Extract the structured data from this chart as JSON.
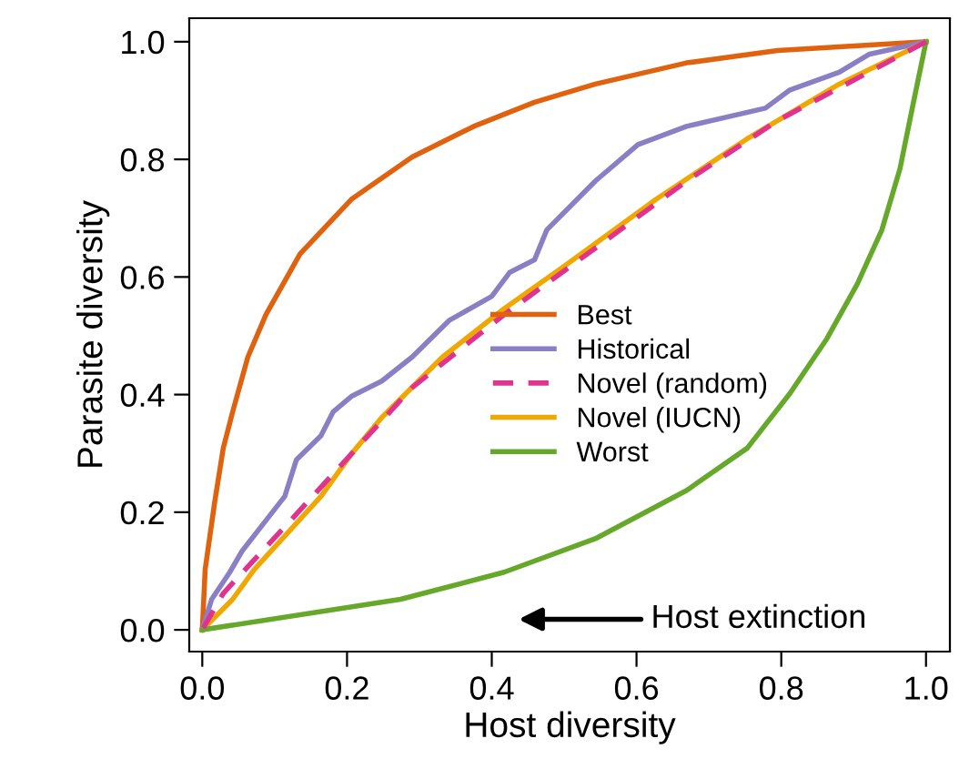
{
  "chart_data": {
    "type": "line",
    "xlabel": "Host diversity",
    "ylabel": "Parasite diversity",
    "xlim": [
      -0.018,
      1.033
    ],
    "ylim": [
      -0.037,
      1.04
    ],
    "xticks": [
      {
        "value": 0,
        "label": "0.0"
      },
      {
        "value": 0.2,
        "label": "0.2"
      },
      {
        "value": 0.4,
        "label": "0.4"
      },
      {
        "value": 0.6,
        "label": "0.6"
      },
      {
        "value": 0.8,
        "label": "0.8"
      },
      {
        "value": 1,
        "label": "1.0"
      }
    ],
    "yticks": [
      {
        "value": 0,
        "label": "0.0"
      },
      {
        "value": 0.2,
        "label": "0.2"
      },
      {
        "value": 0.4,
        "label": "0.4"
      },
      {
        "value": 0.6,
        "label": "0.6"
      },
      {
        "value": 0.8,
        "label": "0.8"
      },
      {
        "value": 1,
        "label": "1.0"
      }
    ],
    "grid": false,
    "legend": "center",
    "marker": "none",
    "annotations": [
      "Host extinction"
    ],
    "series": [
      {
        "name": "Best",
        "color": "#e0620e",
        "line_style": "solid",
        "x": [
          0,
          0.004,
          0.017,
          0.029,
          0.042,
          0.063,
          0.088,
          0.135,
          0.206,
          0.29,
          0.375,
          0.459,
          0.543,
          0.669,
          0.795,
          1
        ],
        "values": [
          0,
          0.103,
          0.216,
          0.309,
          0.371,
          0.464,
          0.536,
          0.639,
          0.732,
          0.804,
          0.856,
          0.897,
          0.928,
          0.964,
          0.985,
          1
        ]
      },
      {
        "name": "Historical",
        "color": "#8a7fc4",
        "line_style": "solid",
        "x": [
          0,
          0.013,
          0.038,
          0.055,
          0.088,
          0.114,
          0.13,
          0.164,
          0.181,
          0.206,
          0.248,
          0.29,
          0.341,
          0.4,
          0.425,
          0.459,
          0.476,
          0.543,
          0.602,
          0.669,
          0.778,
          0.812,
          0.88,
          0.922,
          1
        ],
        "values": [
          0,
          0.052,
          0.098,
          0.134,
          0.186,
          0.227,
          0.289,
          0.33,
          0.371,
          0.397,
          0.423,
          0.464,
          0.526,
          0.567,
          0.608,
          0.629,
          0.68,
          0.763,
          0.825,
          0.856,
          0.887,
          0.918,
          0.948,
          0.979,
          1
        ]
      },
      {
        "name": "Novel (random)",
        "color": "#e0338f",
        "line_style": "dashed",
        "x": [
          0,
          0.029,
          0.122,
          0.206,
          0.29,
          0.417,
          0.543,
          0.669,
          0.795,
          1
        ],
        "values": [
          0,
          0.062,
          0.186,
          0.299,
          0.412,
          0.536,
          0.649,
          0.763,
          0.866,
          1
        ]
      },
      {
        "name": "Novel (IUCN)",
        "color": "#f0a800",
        "line_style": "solid",
        "x": [
          0,
          0.042,
          0.072,
          0.164,
          0.206,
          0.248,
          0.332,
          0.417,
          0.501,
          0.627,
          0.753,
          0.88,
          1
        ],
        "values": [
          0,
          0.052,
          0.103,
          0.227,
          0.299,
          0.361,
          0.464,
          0.546,
          0.619,
          0.732,
          0.835,
          0.928,
          1
        ]
      },
      {
        "name": "Worst",
        "color": "#66a82a",
        "line_style": "solid",
        "x": [
          0,
          0.274,
          0.417,
          0.543,
          0.669,
          0.753,
          0.812,
          0.863,
          0.905,
          0.939,
          0.964,
          0.981,
          1
        ],
        "values": [
          0,
          0.052,
          0.098,
          0.155,
          0.237,
          0.309,
          0.402,
          0.495,
          0.588,
          0.68,
          0.784,
          0.887,
          1
        ]
      }
    ]
  }
}
